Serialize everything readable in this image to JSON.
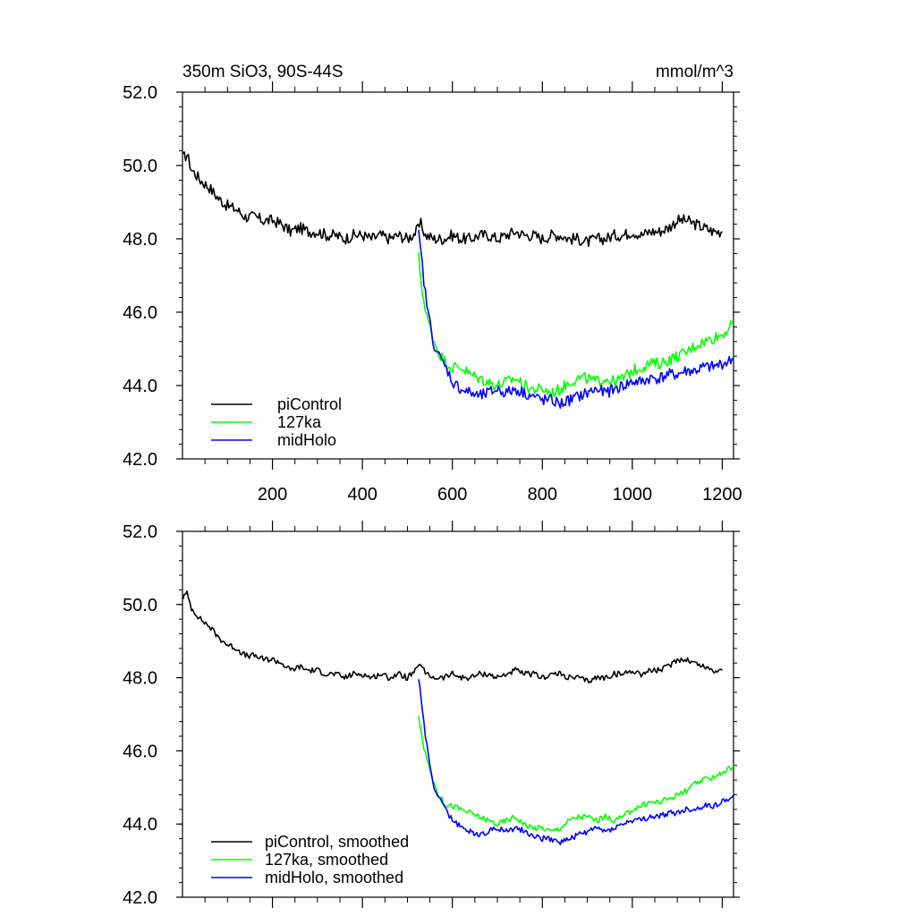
{
  "chart_data": [
    {
      "type": "line",
      "title_left": "350m SiO3, 90S-44S",
      "title_right": "mmol/m^3",
      "xlim": [
        0,
        1225
      ],
      "ylim": [
        42.0,
        52.0
      ],
      "xticks": [
        200,
        400,
        600,
        800,
        1000,
        1200
      ],
      "xtick_labels": [
        "200",
        "400",
        "600",
        "800",
        "1000",
        "1200"
      ],
      "yticks": [
        42,
        44,
        46,
        48,
        50,
        52
      ],
      "ytick_labels": [
        "42.0",
        "44.0",
        "46.0",
        "48.0",
        "50.0",
        "52.0"
      ],
      "legend_position": "bottom-left",
      "series": [
        {
          "name": "piControl",
          "color": "#000000",
          "x": [
            1,
            10,
            20,
            40,
            60,
            80,
            100,
            120,
            140,
            160,
            180,
            200,
            220,
            240,
            260,
            280,
            300,
            320,
            340,
            360,
            380,
            400,
            420,
            440,
            460,
            480,
            500,
            520,
            530,
            540,
            560,
            580,
            600,
            620,
            640,
            660,
            680,
            700,
            720,
            740,
            760,
            780,
            800,
            820,
            840,
            860,
            880,
            900,
            920,
            940,
            960,
            980,
            1000,
            1020,
            1040,
            1060,
            1080,
            1100,
            1120,
            1140,
            1160,
            1180,
            1200
          ],
          "values": [
            50.2,
            50.3,
            49.9,
            49.6,
            49.4,
            49.1,
            48.9,
            48.8,
            48.6,
            48.6,
            48.5,
            48.5,
            48.4,
            48.2,
            48.3,
            48.2,
            48.2,
            48.1,
            48.1,
            48.0,
            48.1,
            48.1,
            48.0,
            48.1,
            48.0,
            48.1,
            48.0,
            48.2,
            48.4,
            48.1,
            48.0,
            48.0,
            48.1,
            48.0,
            48.0,
            48.1,
            48.1,
            48.0,
            48.1,
            48.2,
            48.1,
            48.1,
            48.0,
            48.1,
            48.1,
            48.0,
            48.0,
            47.9,
            48.0,
            48.0,
            48.1,
            48.1,
            48.2,
            48.1,
            48.2,
            48.2,
            48.3,
            48.5,
            48.5,
            48.4,
            48.3,
            48.2,
            48.2
          ]
        },
        {
          "name": "127ka",
          "color": "#00ff00",
          "x": [
            525,
            530,
            540,
            550,
            560,
            570,
            580,
            590,
            600,
            620,
            640,
            660,
            680,
            700,
            720,
            740,
            760,
            780,
            800,
            820,
            840,
            860,
            880,
            900,
            920,
            940,
            960,
            980,
            1000,
            1020,
            1040,
            1060,
            1080,
            1100,
            1120,
            1140,
            1160,
            1180,
            1200,
            1225
          ],
          "values": [
            47.5,
            46.9,
            46.0,
            45.6,
            45.2,
            44.9,
            44.7,
            44.6,
            44.5,
            44.5,
            44.3,
            44.2,
            44.1,
            44.0,
            44.1,
            44.2,
            44.0,
            43.9,
            43.9,
            43.8,
            43.9,
            44.1,
            44.2,
            44.2,
            44.1,
            44.2,
            44.1,
            44.2,
            44.4,
            44.5,
            44.6,
            44.6,
            44.7,
            44.8,
            44.9,
            45.1,
            45.2,
            45.3,
            45.4,
            45.7
          ]
        },
        {
          "name": "midHolo",
          "color": "#0000ff",
          "x": [
            525,
            530,
            540,
            550,
            560,
            570,
            580,
            590,
            600,
            620,
            640,
            660,
            680,
            700,
            720,
            740,
            760,
            780,
            800,
            820,
            840,
            860,
            880,
            900,
            920,
            940,
            960,
            980,
            1000,
            1020,
            1040,
            1060,
            1080,
            1100,
            1120,
            1140,
            1160,
            1180,
            1200,
            1225
          ],
          "values": [
            48.1,
            47.6,
            46.5,
            45.7,
            45.1,
            44.8,
            44.6,
            44.4,
            44.1,
            43.9,
            43.8,
            43.7,
            43.8,
            43.9,
            43.8,
            43.9,
            43.8,
            43.7,
            43.6,
            43.6,
            43.5,
            43.6,
            43.7,
            43.8,
            43.9,
            43.8,
            43.9,
            44.0,
            44.1,
            44.1,
            44.2,
            44.2,
            44.3,
            44.3,
            44.4,
            44.4,
            44.5,
            44.5,
            44.6,
            44.7
          ]
        }
      ]
    },
    {
      "type": "line",
      "xlim": [
        0,
        1225
      ],
      "ylim": [
        42.0,
        52.0
      ],
      "xticks": [
        200,
        400,
        600,
        800,
        1000,
        1200
      ],
      "yticks": [
        42,
        44,
        46,
        48,
        50,
        52
      ],
      "ytick_labels": [
        "42.0",
        "44.0",
        "46.0",
        "48.0",
        "50.0",
        "52.0"
      ],
      "legend_position": "bottom-left",
      "series": [
        {
          "name": "piControl, smoothed",
          "color": "#000000",
          "x": [
            1,
            10,
            20,
            40,
            60,
            80,
            100,
            120,
            140,
            160,
            180,
            200,
            220,
            240,
            260,
            280,
            300,
            320,
            340,
            360,
            380,
            400,
            420,
            440,
            460,
            480,
            500,
            520,
            530,
            540,
            560,
            580,
            600,
            620,
            640,
            660,
            680,
            700,
            720,
            740,
            760,
            780,
            800,
            820,
            840,
            860,
            880,
            900,
            920,
            940,
            960,
            980,
            1000,
            1020,
            1040,
            1060,
            1080,
            1100,
            1120,
            1140,
            1160,
            1180,
            1200
          ],
          "values": [
            50.2,
            50.3,
            49.9,
            49.6,
            49.4,
            49.1,
            48.9,
            48.8,
            48.6,
            48.6,
            48.5,
            48.5,
            48.4,
            48.2,
            48.3,
            48.2,
            48.2,
            48.1,
            48.1,
            48.0,
            48.1,
            48.1,
            48.0,
            48.1,
            48.0,
            48.1,
            48.0,
            48.2,
            48.4,
            48.1,
            48.0,
            48.0,
            48.1,
            48.0,
            48.0,
            48.1,
            48.1,
            48.0,
            48.1,
            48.2,
            48.1,
            48.1,
            48.0,
            48.1,
            48.1,
            48.0,
            48.0,
            47.9,
            48.0,
            48.0,
            48.1,
            48.1,
            48.2,
            48.1,
            48.2,
            48.2,
            48.3,
            48.5,
            48.5,
            48.4,
            48.3,
            48.2,
            48.2
          ]
        },
        {
          "name": "127ka, smoothed",
          "color": "#00ff00",
          "x": [
            525,
            530,
            540,
            550,
            560,
            570,
            580,
            590,
            600,
            620,
            640,
            660,
            680,
            700,
            720,
            740,
            760,
            780,
            800,
            820,
            840,
            860,
            880,
            900,
            920,
            940,
            960,
            980,
            1000,
            1020,
            1040,
            1060,
            1080,
            1100,
            1120,
            1140,
            1160,
            1180,
            1200,
            1225
          ],
          "values": [
            47.0,
            46.5,
            45.9,
            45.5,
            45.1,
            44.8,
            44.6,
            44.5,
            44.5,
            44.4,
            44.3,
            44.2,
            44.1,
            44.0,
            44.1,
            44.2,
            44.0,
            43.9,
            43.9,
            43.8,
            43.9,
            44.1,
            44.2,
            44.2,
            44.1,
            44.2,
            44.1,
            44.2,
            44.4,
            44.5,
            44.6,
            44.6,
            44.7,
            44.8,
            44.9,
            45.1,
            45.2,
            45.3,
            45.4,
            45.6
          ]
        },
        {
          "name": "midHolo, smoothed",
          "color": "#0000ff",
          "x": [
            525,
            530,
            540,
            550,
            560,
            570,
            580,
            590,
            600,
            620,
            640,
            660,
            680,
            700,
            720,
            740,
            760,
            780,
            800,
            820,
            840,
            860,
            880,
            900,
            920,
            940,
            960,
            980,
            1000,
            1020,
            1040,
            1060,
            1080,
            1100,
            1120,
            1140,
            1160,
            1180,
            1200,
            1225
          ],
          "values": [
            48.0,
            47.5,
            46.4,
            45.6,
            45.0,
            44.7,
            44.5,
            44.3,
            44.1,
            43.9,
            43.8,
            43.7,
            43.8,
            43.9,
            43.8,
            43.9,
            43.8,
            43.7,
            43.6,
            43.6,
            43.5,
            43.6,
            43.7,
            43.8,
            43.9,
            43.8,
            43.9,
            44.0,
            44.1,
            44.1,
            44.2,
            44.2,
            44.3,
            44.3,
            44.4,
            44.4,
            44.5,
            44.5,
            44.6,
            44.8
          ]
        }
      ]
    }
  ]
}
